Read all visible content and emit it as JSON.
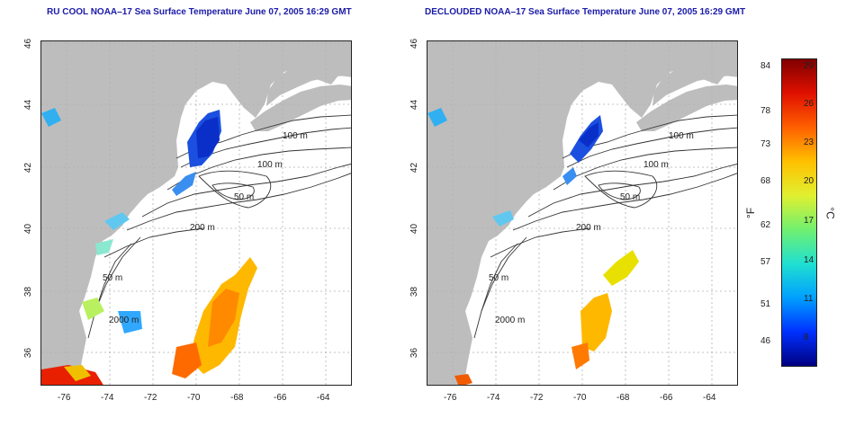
{
  "titles": {
    "left": "RU COOL NOAA–17 Sea Surface Temperature June 07, 2005 16:29 GMT",
    "right": "DECLOUDED NOAA–17 Sea Surface Temperature June 07, 2005 16:29 GMT"
  },
  "axes": {
    "lon_ticks": [
      "-76",
      "-74",
      "-72",
      "-70",
      "-68",
      "-66",
      "-64"
    ],
    "lat_ticks": [
      "46",
      "44",
      "42",
      "40",
      "38",
      "36"
    ]
  },
  "contours": {
    "labels_left": [
      "100 m",
      "100 m",
      "50 m",
      "200 m",
      "50 m",
      "2000 m"
    ],
    "labels_right": [
      "100 m",
      "100 m",
      "50 m",
      "200 m",
      "50 m",
      "2000 m"
    ]
  },
  "colorbar": {
    "fahrenheit_ticks": [
      "84",
      "78",
      "73",
      "68",
      "62",
      "57",
      "51",
      "46"
    ],
    "celsius_ticks": [
      "29",
      "26",
      "23",
      "20",
      "17",
      "14",
      "11",
      "8"
    ],
    "f_unit": "°F",
    "c_unit": "°C",
    "colors": [
      "#000080",
      "#0030ff",
      "#00a0ff",
      "#20e0d0",
      "#70f070",
      "#e0f030",
      "#ffc000",
      "#ff6000",
      "#e01000",
      "#800000"
    ]
  },
  "colors": {
    "land": "#bdbdbd",
    "ocean": "#ffffff",
    "title": "#1a1aa8"
  }
}
